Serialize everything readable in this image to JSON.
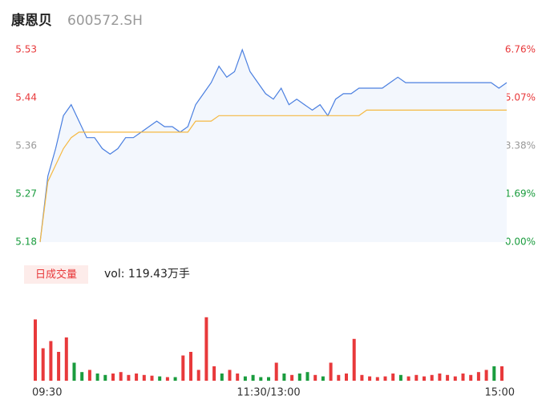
{
  "header": {
    "title": "康恩贝",
    "code": "600572.SH"
  },
  "chart_data": [
    {
      "type": "line",
      "x": [
        0,
        4,
        8,
        12,
        16,
        20,
        24,
        28,
        32,
        36,
        40,
        44,
        48,
        52,
        56,
        60,
        64,
        68,
        72,
        76,
        80,
        84,
        88,
        92,
        96,
        100,
        104,
        108,
        112,
        116,
        120,
        124,
        128,
        132,
        136,
        140,
        144,
        148,
        152,
        156,
        160,
        164,
        168,
        172,
        176,
        180,
        184,
        188,
        192,
        196,
        200,
        204,
        208,
        212,
        216,
        220,
        224,
        228,
        232,
        236,
        240
      ],
      "xlim": [
        0,
        240
      ],
      "series": [
        {
          "color": "#4a7fe0",
          "fill": "#f3f7fd",
          "values": [
            5.18,
            5.3,
            5.35,
            5.41,
            5.43,
            5.4,
            5.37,
            5.37,
            5.35,
            5.34,
            5.35,
            5.37,
            5.37,
            5.38,
            5.39,
            5.4,
            5.39,
            5.39,
            5.38,
            5.39,
            5.43,
            5.45,
            5.47,
            5.5,
            5.48,
            5.49,
            5.53,
            5.49,
            5.47,
            5.45,
            5.44,
            5.46,
            5.43,
            5.44,
            5.43,
            5.42,
            5.43,
            5.41,
            5.44,
            5.45,
            5.45,
            5.46,
            5.46,
            5.46,
            5.46,
            5.47,
            5.48,
            5.47,
            5.47,
            5.47,
            5.47,
            5.47,
            5.47,
            5.47,
            5.47,
            5.47,
            5.47,
            5.47,
            5.47,
            5.46,
            5.47
          ]
        },
        {
          "color": "#f5b942",
          "values": [
            5.18,
            5.29,
            5.32,
            5.35,
            5.37,
            5.38,
            5.38,
            5.38,
            5.38,
            5.38,
            5.38,
            5.38,
            5.38,
            5.38,
            5.38,
            5.38,
            5.38,
            5.38,
            5.38,
            5.38,
            5.4,
            5.4,
            5.4,
            5.41,
            5.41,
            5.41,
            5.41,
            5.41,
            5.41,
            5.41,
            5.41,
            5.41,
            5.41,
            5.41,
            5.41,
            5.41,
            5.41,
            5.41,
            5.41,
            5.41,
            5.41,
            5.41,
            5.42,
            5.42,
            5.42,
            5.42,
            5.42,
            5.42,
            5.42,
            5.42,
            5.42,
            5.42,
            5.42,
            5.42,
            5.42,
            5.42,
            5.42,
            5.42,
            5.42,
            5.42,
            5.42
          ]
        }
      ],
      "ylim": [
        5.18,
        5.53
      ],
      "yticks": [
        5.18,
        {
          "value": 5.2675,
          "label": "5.27"
        },
        {
          "value": 5.355,
          "label": "5.36"
        },
        {
          "value": 5.4425,
          "label": "5.44"
        },
        5.53
      ],
      "y2lim": [
        0,
        6.76
      ],
      "y2ticks": [
        {
          "value": 0,
          "label": "0.00%"
        },
        {
          "value": 1.69,
          "label": "1.69%"
        },
        {
          "value": 3.38,
          "label": "3.38%"
        },
        {
          "value": 5.07,
          "label": "5.07%"
        },
        {
          "value": 6.76,
          "label": "6.76%"
        }
      ],
      "up_color": "#e8393b",
      "flat_color": "#999999",
      "down_color": "#1a9c3e"
    },
    {
      "type": "bar",
      "title": "日成交量",
      "subtitle": "vol: 119.43万手",
      "x": [
        0,
        4,
        8,
        12,
        16,
        20,
        24,
        28,
        32,
        36,
        40,
        44,
        48,
        52,
        56,
        60,
        64,
        68,
        72,
        76,
        80,
        84,
        88,
        92,
        96,
        100,
        104,
        108,
        112,
        116,
        120,
        124,
        128,
        132,
        136,
        140,
        144,
        148,
        152,
        156,
        160,
        164,
        168,
        172,
        176,
        180,
        184,
        188,
        192,
        196,
        200,
        204,
        208,
        212,
        216,
        220,
        224,
        228,
        232,
        236,
        240
      ],
      "xlim": [
        0,
        240
      ],
      "xticks": [
        {
          "value": 0,
          "label": "09:30"
        },
        {
          "value": 120,
          "label": "11:30/13:00"
        },
        {
          "value": 240,
          "label": "15:00"
        }
      ],
      "values": [
        85,
        45,
        55,
        40,
        60,
        25,
        12,
        15,
        10,
        8,
        10,
        12,
        8,
        10,
        8,
        7,
        6,
        5,
        5,
        35,
        40,
        15,
        88,
        20,
        10,
        15,
        10,
        6,
        8,
        5,
        5,
        25,
        10,
        8,
        10,
        12,
        8,
        6,
        25,
        8,
        10,
        58,
        8,
        6,
        5,
        6,
        10,
        8,
        6,
        8,
        6,
        8,
        10,
        8,
        6,
        10,
        8,
        12,
        15,
        20,
        20
      ],
      "ylim": [
        0,
        100
      ],
      "up_color": "#e8393b",
      "down_color": "#1a9c3e"
    }
  ]
}
